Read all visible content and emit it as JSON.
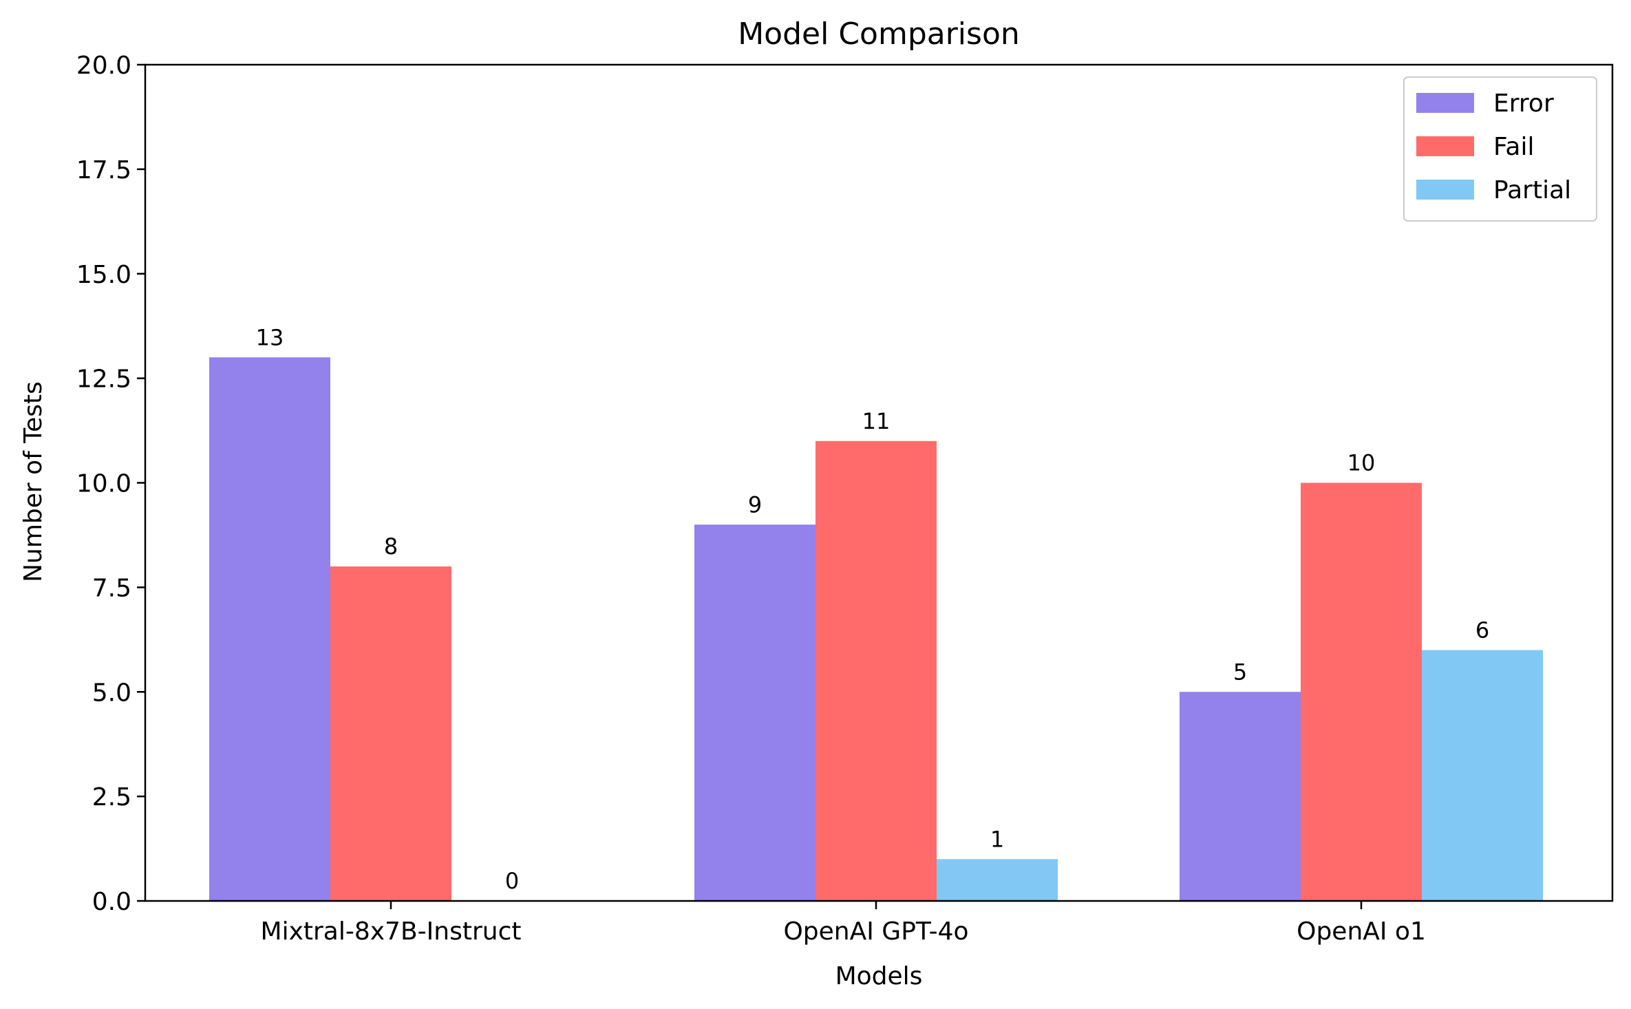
{
  "chart_data": {
    "type": "bar",
    "title": "Model Comparison",
    "xlabel": "Models",
    "ylabel": "Number of Tests",
    "categories": [
      "Mixtral-8x7B-Instruct",
      "OpenAI GPT-4o",
      "OpenAI o1"
    ],
    "series": [
      {
        "name": "Error",
        "values": [
          13,
          9,
          5
        ],
        "color": "#9381EC"
      },
      {
        "name": "Fail",
        "values": [
          8,
          11,
          10
        ],
        "color": "#FF6B6B"
      },
      {
        "name": "Partial",
        "values": [
          0,
          1,
          6
        ],
        "color": "#81C8F5"
      }
    ],
    "ylim": [
      0,
      20
    ],
    "yticks": [
      "0.0",
      "2.5",
      "5.0",
      "7.5",
      "10.0",
      "12.5",
      "15.0",
      "17.5",
      "20.0"
    ],
    "ytick_values": [
      0,
      2.5,
      5,
      7.5,
      10,
      12.5,
      15,
      17.5,
      20
    ],
    "grid": false,
    "legend_position": "top-right"
  }
}
